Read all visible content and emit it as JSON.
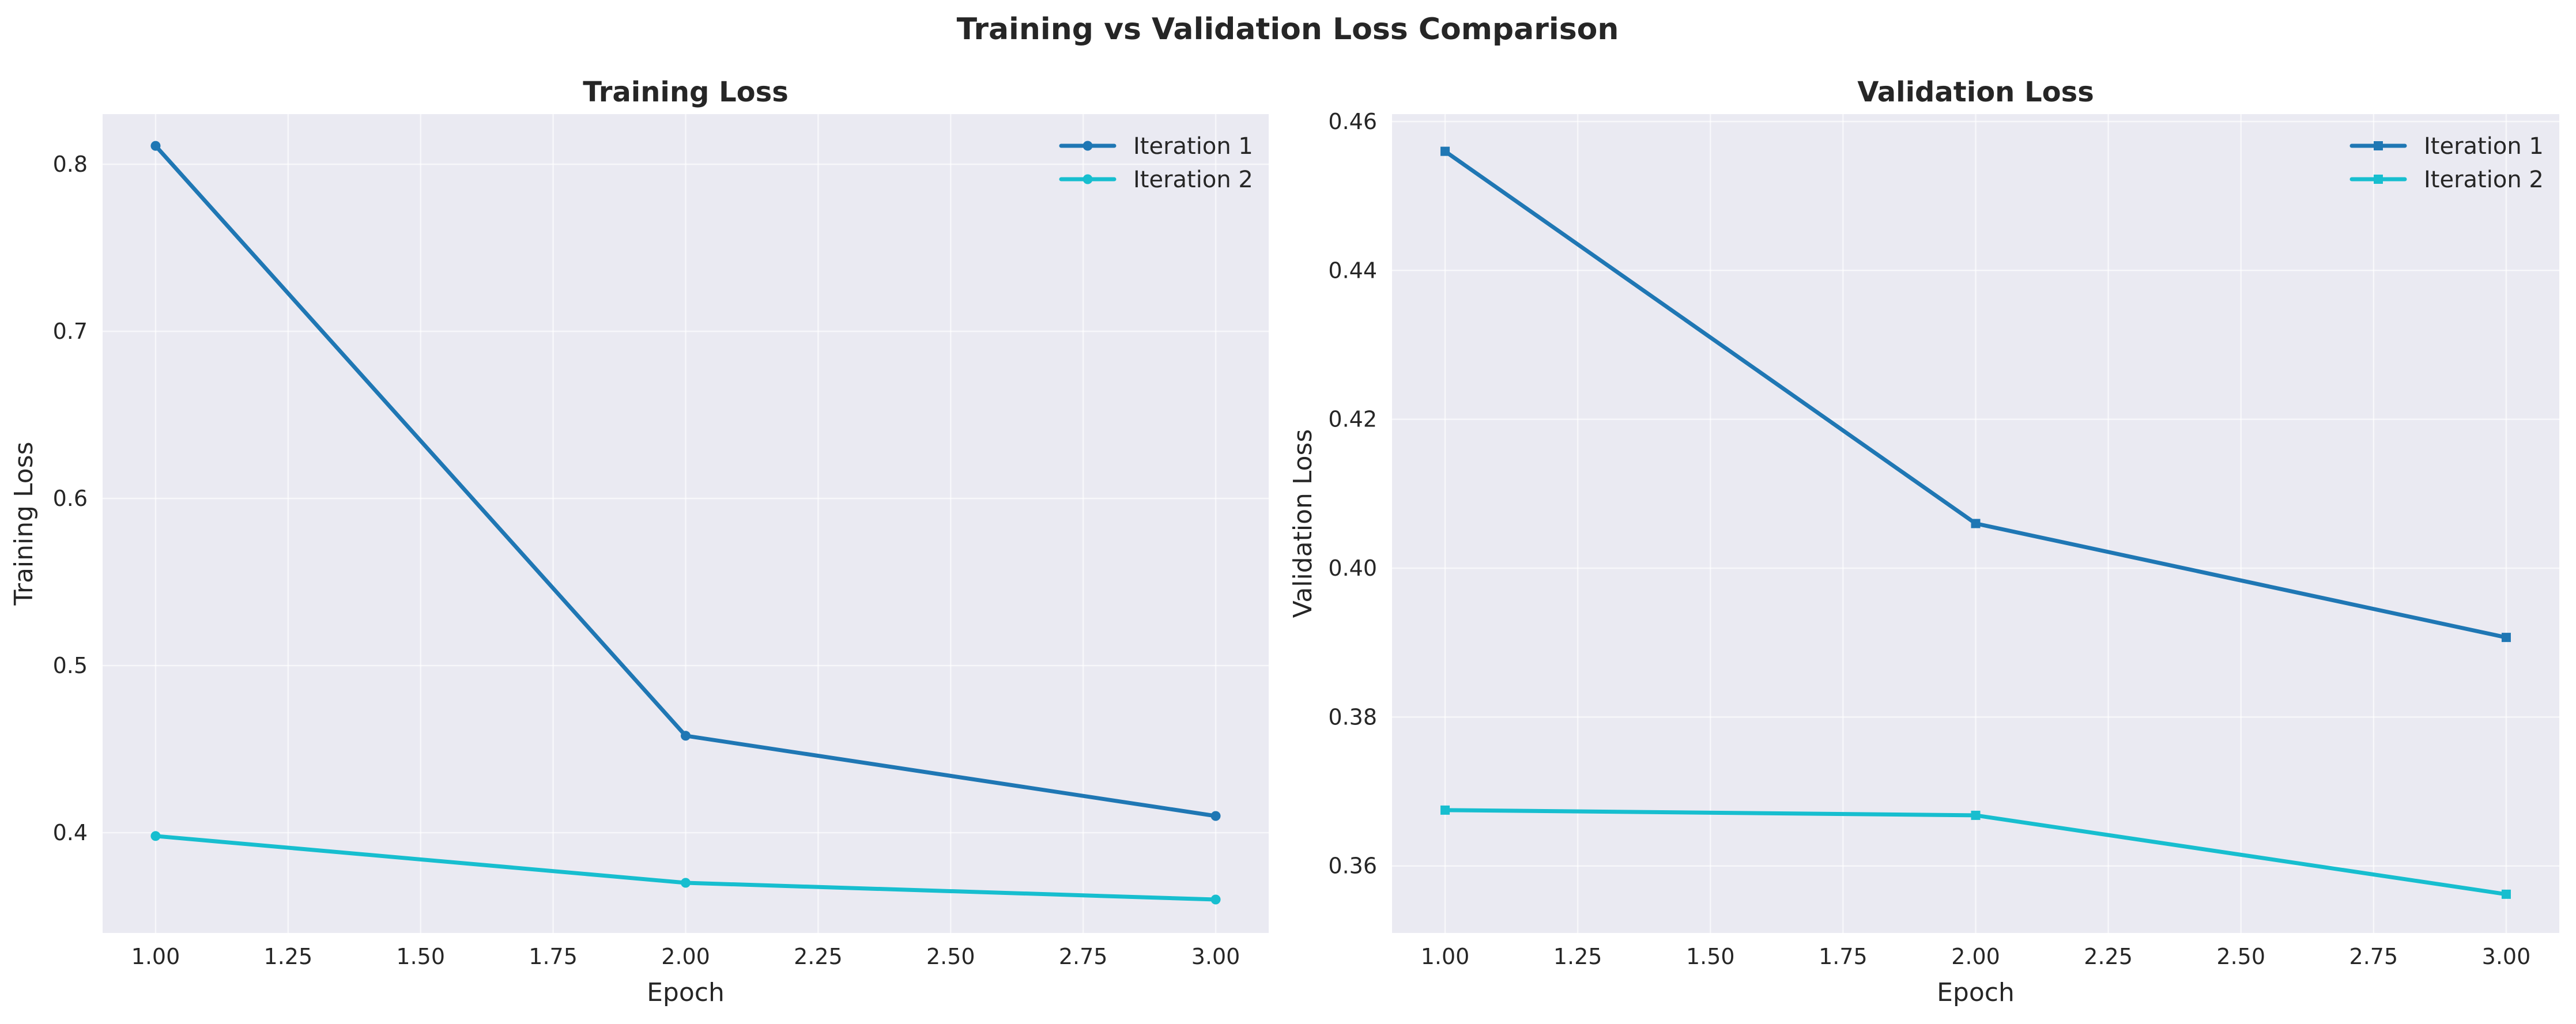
{
  "figure": {
    "suptitle": "Training vs Validation Loss Comparison",
    "background": "#ffffff",
    "plot_background": "#eaeaf2",
    "grid_color": "#ffffff"
  },
  "chart_data": [
    {
      "type": "line",
      "title": "Training Loss",
      "xlabel": "Epoch",
      "ylabel": "Training Loss",
      "x": [
        1,
        2,
        3
      ],
      "xlim": [
        0.9,
        3.1
      ],
      "ylim": [
        0.34,
        0.83
      ],
      "xticks": [
        1.0,
        1.25,
        1.5,
        1.75,
        2.0,
        2.25,
        2.5,
        2.75,
        3.0
      ],
      "xtick_labels": [
        "1.00",
        "1.25",
        "1.50",
        "1.75",
        "2.00",
        "2.25",
        "2.50",
        "2.75",
        "3.00"
      ],
      "yticks": [
        0.4,
        0.5,
        0.6,
        0.7,
        0.8
      ],
      "ytick_labels": [
        "0.4",
        "0.5",
        "0.6",
        "0.7",
        "0.8"
      ],
      "grid": true,
      "legend_position": "top-right",
      "marker": "circle",
      "series": [
        {
          "name": "Iteration 1",
          "color": "#1f77b4",
          "values": [
            0.811,
            0.458,
            0.41
          ]
        },
        {
          "name": "Iteration 2",
          "color": "#17becf",
          "values": [
            0.398,
            0.37,
            0.36
          ]
        }
      ]
    },
    {
      "type": "line",
      "title": "Validation Loss",
      "xlabel": "Epoch",
      "ylabel": "Validation Loss",
      "x": [
        1,
        2,
        3
      ],
      "xlim": [
        0.9,
        3.1
      ],
      "ylim": [
        0.351,
        0.461
      ],
      "xticks": [
        1.0,
        1.25,
        1.5,
        1.75,
        2.0,
        2.25,
        2.5,
        2.75,
        3.0
      ],
      "xtick_labels": [
        "1.00",
        "1.25",
        "1.50",
        "1.75",
        "2.00",
        "2.25",
        "2.50",
        "2.75",
        "3.00"
      ],
      "yticks": [
        0.36,
        0.38,
        0.4,
        0.42,
        0.44,
        0.46
      ],
      "ytick_labels": [
        "0.36",
        "0.38",
        "0.40",
        "0.42",
        "0.44",
        "0.46"
      ],
      "grid": true,
      "legend_position": "top-right",
      "marker": "square",
      "series": [
        {
          "name": "Iteration 1",
          "color": "#1f77b4",
          "values": [
            0.456,
            0.406,
            0.3907
          ]
        },
        {
          "name": "Iteration 2",
          "color": "#17becf",
          "values": [
            0.3675,
            0.3668,
            0.3562
          ]
        }
      ]
    }
  ]
}
